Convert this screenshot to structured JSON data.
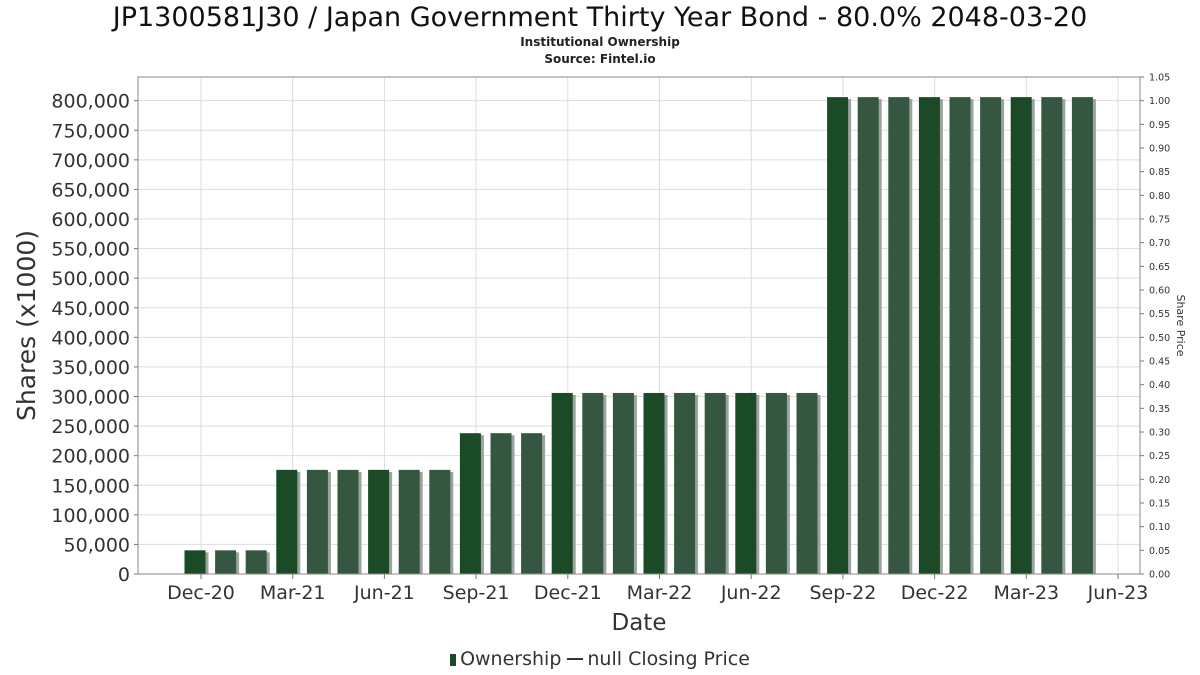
{
  "title": "JP1300581J30 / Japan Government Thirty Year Bond - 80.0% 2048-03-20",
  "subtitle1": "Institutional Ownership",
  "subtitle2": "Source: Fintel.io",
  "legend": {
    "ownership": "Ownership",
    "closing_price": "null Closing Price"
  },
  "colors": {
    "bar_dark": "#1a4a26",
    "bar_light": "#35573f",
    "shadow": "#9aa39c",
    "grid": "#dddddd"
  },
  "chart_data": {
    "type": "bar",
    "xlabel": "Date",
    "ylabel": "Shares (x1000)",
    "y2label": "Share Price",
    "ylim": [
      0,
      840000
    ],
    "y2lim": [
      0,
      1.05
    ],
    "grid": true,
    "legend_position": "bottom",
    "x_tick_labels": [
      "Dec-20",
      "Mar-21",
      "Jun-21",
      "Sep-21",
      "Dec-21",
      "Mar-22",
      "Jun-22",
      "Sep-22",
      "Dec-22",
      "Mar-23",
      "Jun-23"
    ],
    "y_tick_labels": [
      "0",
      "50,000",
      "100,000",
      "150,000",
      "200,000",
      "250,000",
      "300,000",
      "350,000",
      "400,000",
      "450,000",
      "500,000",
      "550,000",
      "600,000",
      "650,000",
      "700,000",
      "750,000",
      "800,000"
    ],
    "y2_tick_labels": [
      "0.00",
      "0.05",
      "0.10",
      "0.15",
      "0.20",
      "0.25",
      "0.30",
      "0.35",
      "0.40",
      "0.45",
      "0.50",
      "0.55",
      "0.60",
      "0.65",
      "0.70",
      "0.75",
      "0.80",
      "0.85",
      "0.90",
      "0.95",
      "1.00",
      "1.05"
    ],
    "series": [
      {
        "name": "Ownership",
        "values": [
          40000,
          40000,
          40000,
          176000,
          176000,
          176000,
          176000,
          176000,
          176000,
          238000,
          238000,
          238000,
          306000,
          306000,
          306000,
          306000,
          306000,
          306000,
          306000,
          306000,
          306000,
          806000,
          806000,
          806000,
          806000,
          806000,
          806000,
          806000,
          806000,
          806000
        ]
      }
    ]
  }
}
